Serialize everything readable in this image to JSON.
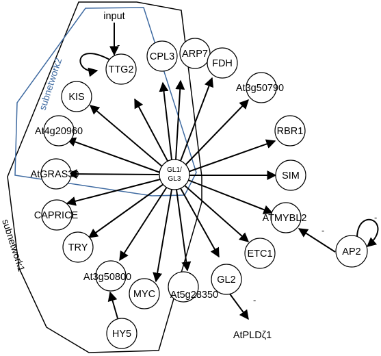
{
  "diagram": {
    "hub": {
      "line1": "GL1/",
      "line2": "GL3"
    },
    "input_label": "input",
    "subnetworks": {
      "one": "subnetwork1",
      "two": "subnetwork2"
    },
    "colors": {
      "subnetwork1_border": "#000000",
      "subnetwork2_border": "#3e6aa1",
      "node_fill": "#ffffff",
      "edge": "#000000"
    },
    "nodes": {
      "ttg2": "TTG2",
      "cpl3": "CPL3",
      "arp7": "ARP7",
      "fdh": "FDH",
      "at3g50790": "At3g50790",
      "kis": "KIS",
      "rbr1": "RBR1",
      "at4g20960": "At4g20960",
      "sim": "SIM",
      "atgrass0": "AtGRAS30",
      "caprice": "CAPRICE",
      "atmybl2": "ATMYBL2",
      "ap2": "AP2",
      "try": "TRY",
      "etc1": "ETC1",
      "at3g50800": "At3g50800",
      "myc": "MYC",
      "at5g28350": "At5g28350",
      "gl2": "GL2",
      "hy5": "HY5",
      "atpldz1": "AtPLDζ1"
    },
    "signs": {
      "ttg2_self": "-",
      "ap2_self": "-",
      "ap2_to_atmybl2": "-",
      "gl2_to_atpldz1": "-"
    }
  }
}
